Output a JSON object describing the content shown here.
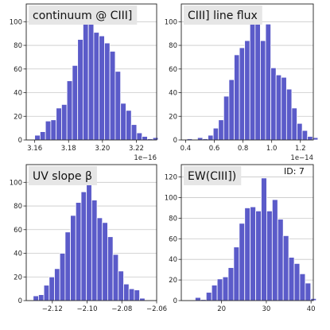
{
  "figure_note": "ID: 7",
  "colors": {
    "bar": "#5b5bc9",
    "bar_edge": "#ffffff",
    "title_bg": "#e6e6e6",
    "grid": "#c8c8c8",
    "axis": "#222222"
  },
  "chart_data": [
    {
      "type": "bar",
      "title": "continuum @ CIII]",
      "offset_label": "1e−16",
      "ylim": [
        0,
        115
      ],
      "yticks": [
        0,
        20,
        40,
        60,
        80,
        100
      ],
      "xlim": [
        3.155,
        3.232
      ],
      "xticks": [
        3.16,
        3.18,
        3.2,
        3.22
      ],
      "xtick_labels": [
        "3.16",
        "3.18",
        "3.20",
        "3.22"
      ],
      "bin_start": 3.16,
      "bin_width": 0.00317,
      "values": [
        4,
        7,
        16,
        17,
        27,
        30,
        50,
        63,
        85,
        100,
        108,
        91,
        88,
        82,
        75,
        58,
        31,
        25,
        13,
        6,
        3,
        1,
        2
      ]
    },
    {
      "type": "bar",
      "title": "CIII] line flux",
      "offset_label": "1e−14",
      "ylim": [
        0,
        115
      ],
      "yticks": [
        0,
        20,
        40,
        60,
        80,
        100
      ],
      "xlim": [
        0.37,
        1.29
      ],
      "xticks": [
        0.4,
        0.6,
        0.8,
        1.0,
        1.2
      ],
      "xtick_labels": [
        "0.4",
        "0.6",
        "0.8",
        "1.0",
        "1.2"
      ],
      "bin_start": 0.41,
      "bin_width": 0.0365,
      "values": [
        1,
        0,
        2,
        1,
        4,
        10,
        17,
        37,
        51,
        72,
        78,
        84,
        102,
        110,
        84,
        98,
        61,
        55,
        53,
        43,
        27,
        14,
        8,
        3,
        2
      ]
    },
    {
      "type": "bar",
      "title": "UV slope β",
      "offset_label": "",
      "ylim": [
        0,
        115
      ],
      "yticks": [
        0,
        20,
        40,
        60,
        80,
        100
      ],
      "xlim": [
        -2.135,
        -2.06
      ],
      "xticks": [
        -2.12,
        -2.1,
        -2.08,
        -2.06
      ],
      "xtick_labels": [
        "−2.12",
        "−2.10",
        "−2.08",
        "−2.06"
      ],
      "bin_start": -2.131,
      "bin_width": 0.00306,
      "values": [
        4,
        5,
        13,
        20,
        27,
        40,
        58,
        72,
        83,
        92,
        100,
        85,
        70,
        66,
        54,
        39,
        25,
        14,
        10,
        9,
        2
      ]
    },
    {
      "type": "bar",
      "title": "EW(CIII])",
      "offset_label": "",
      "ylim": [
        0,
        132
      ],
      "yticks": [
        0,
        20,
        40,
        60,
        80,
        100,
        120
      ],
      "xlim": [
        11,
        40.5
      ],
      "xticks": [
        20,
        30,
        40
      ],
      "xtick_labels": [
        "20",
        "30",
        "40"
      ],
      "bin_start": 14.1,
      "bin_width": 1.23,
      "values": [
        3,
        1,
        8,
        15,
        21,
        23,
        32,
        52,
        75,
        90,
        91,
        87,
        119,
        87,
        98,
        79,
        63,
        42,
        36,
        26,
        17,
        2
      ]
    }
  ]
}
